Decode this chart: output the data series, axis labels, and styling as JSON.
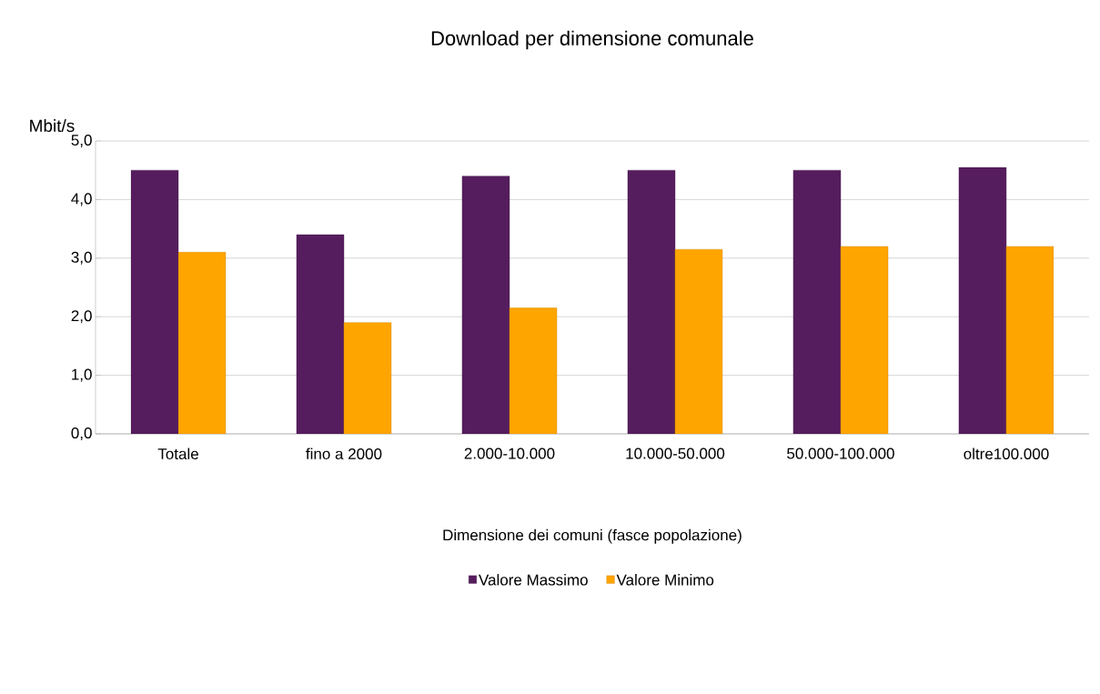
{
  "chart_data": {
    "type": "bar",
    "title": "Download per dimensione comunale",
    "xlabel": "Dimensione dei comuni (fasce popolazione)",
    "ylabel": "Mbit/s",
    "categories": [
      "Totale",
      "fino a 2000",
      "2.000-10.000",
      "10.000-50.000",
      "50.000-100.000",
      "oltre100.000"
    ],
    "series": [
      {
        "name": "Valore Massimo",
        "color": "#561d5e",
        "values": [
          4.5,
          3.4,
          4.4,
          4.5,
          4.5,
          4.55
        ]
      },
      {
        "name": "Valore Minimo",
        "color": "#ffa500",
        "values": [
          3.1,
          1.9,
          2.15,
          3.15,
          3.2,
          3.2
        ]
      }
    ],
    "ylim": [
      0,
      5
    ],
    "yticks": [
      {
        "value": 0,
        "label": "0,0"
      },
      {
        "value": 1,
        "label": "1,0"
      },
      {
        "value": 2,
        "label": "2,0"
      },
      {
        "value": 3,
        "label": "3,0"
      },
      {
        "value": 4,
        "label": "4,0"
      },
      {
        "value": 5,
        "label": "5,0"
      }
    ],
    "grid": "y",
    "legend": "bottom"
  }
}
